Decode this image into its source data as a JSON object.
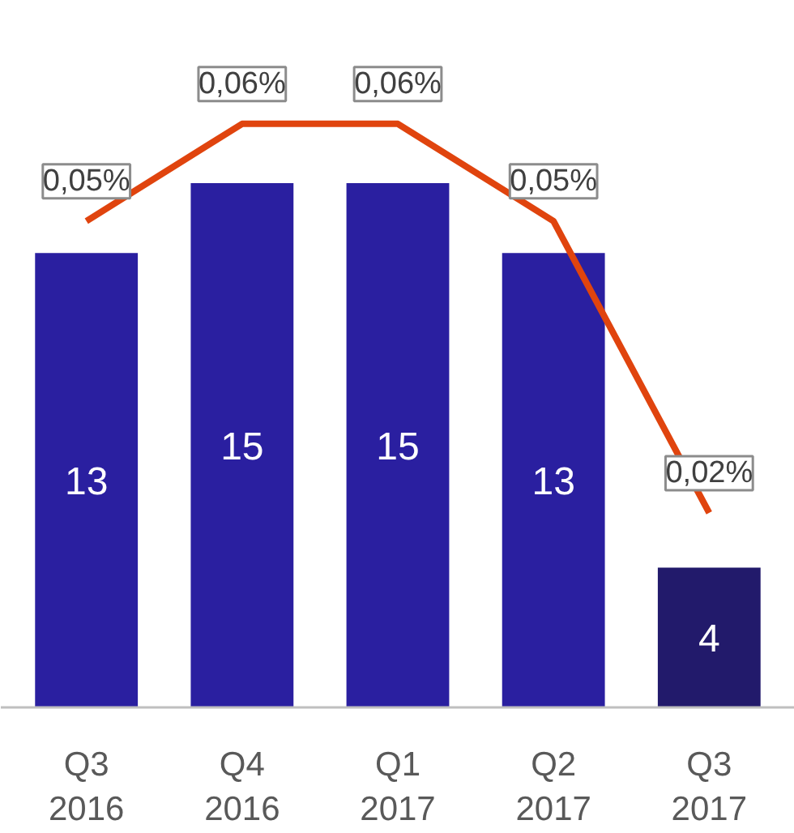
{
  "chart_data": {
    "type": "bar",
    "categories": [
      "Q3\n2016",
      "Q4\n2016",
      "Q1\n2017",
      "Q2\n2017",
      "Q3\n2017"
    ],
    "series": [
      {
        "values": [
          13,
          15,
          15,
          13,
          4
        ],
        "colors": [
          "#2a1fa0",
          "#2a1fa0",
          "#2a1fa0",
          "#2a1fa0",
          "#221a6b"
        ]
      },
      {
        "type": "line",
        "axis": "y2",
        "color": "#e0440e",
        "values": [
          0.05,
          0.06,
          0.06,
          0.05,
          0.02
        ],
        "value_labels": [
          "0,05%",
          "0,06%",
          "0,06%",
          "0,05%",
          "0,02%"
        ]
      }
    ],
    "data_labels": true,
    "grid": false,
    "tick_labels": "x"
  }
}
